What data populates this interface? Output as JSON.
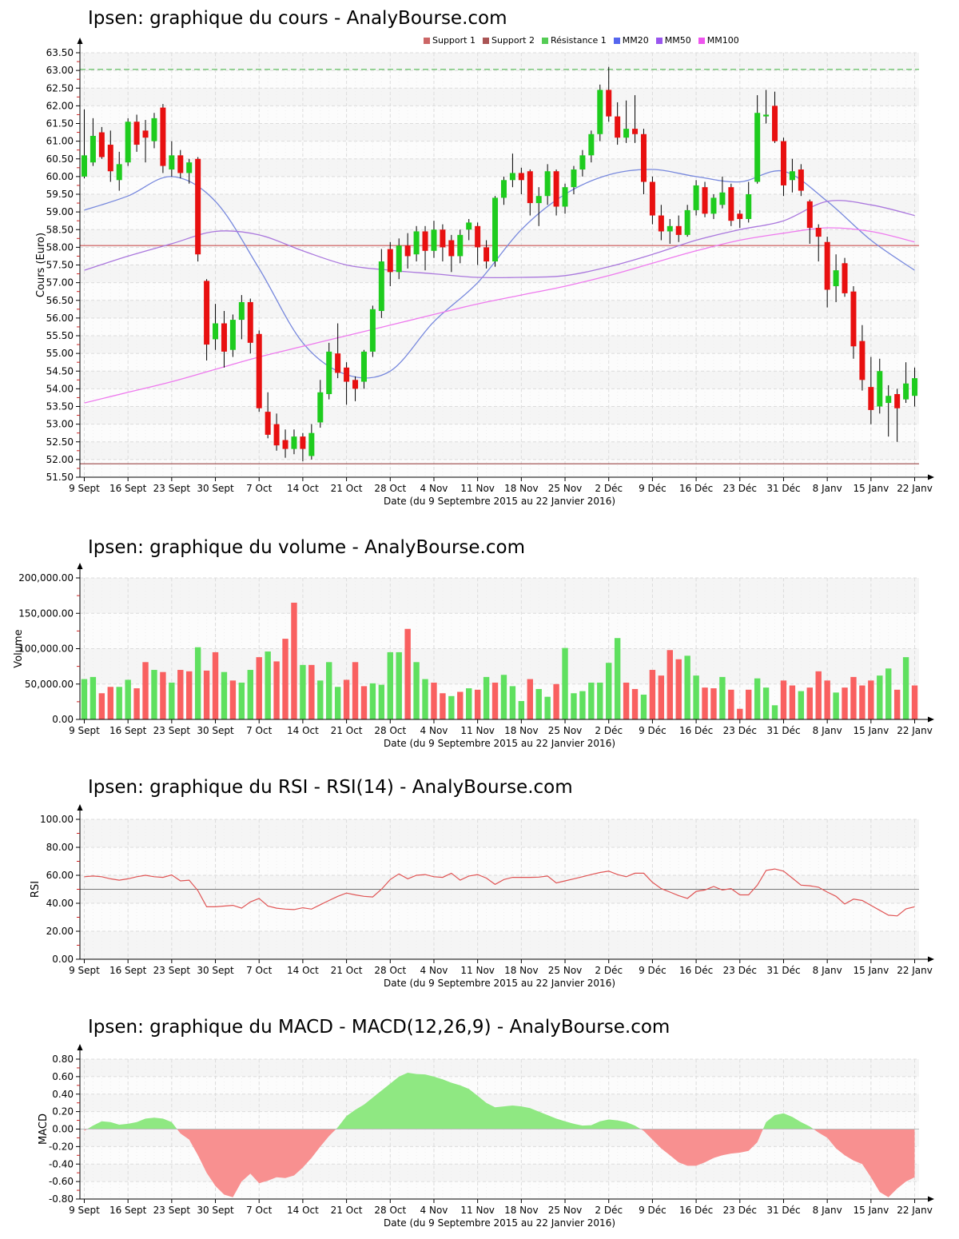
{
  "source_site": "AnalyBourse.com",
  "instrument": "Ipsen",
  "chart_data": [
    {
      "type": "candlestick",
      "title": "Ipsen: graphique du cours - AnalyBourse.com",
      "ylabel": "Cours (Euro)",
      "xlabel": "Date (du 9 Septembre 2015 au 22 Janvier 2016)",
      "ylim": [
        51.5,
        63.5
      ],
      "ystep": 0.5,
      "n_points": 96,
      "xtick_interval": 5,
      "xticklabels": [
        "9 Sept",
        "16 Sept",
        "23 Sept",
        "30 Sept",
        "7 Oct",
        "14 Oct",
        "21 Oct",
        "28 Oct",
        "4 Nov",
        "11 Nov",
        "18 Nov",
        "25 Nov",
        "2 Déc",
        "9 Déc",
        "16 Déc",
        "23 Déc",
        "31 Déc",
        "8 Janv",
        "15 Janv",
        "22 Janv"
      ],
      "up_color": "#1ecc1e",
      "down_color": "#e81010",
      "candles_ohlc": [
        [
          60.0,
          61.9,
          59.95,
          60.6
        ],
        [
          60.4,
          61.65,
          60.3,
          61.15
        ],
        [
          61.25,
          61.4,
          60.5,
          60.55
        ],
        [
          60.9,
          61.3,
          59.85,
          60.15
        ],
        [
          59.9,
          60.7,
          59.6,
          60.35
        ],
        [
          60.4,
          61.65,
          60.3,
          61.55
        ],
        [
          61.55,
          61.75,
          60.7,
          60.9
        ],
        [
          61.3,
          61.6,
          60.4,
          61.1
        ],
        [
          61.0,
          61.8,
          60.8,
          61.65
        ],
        [
          61.95,
          62.05,
          60.1,
          60.3
        ],
        [
          60.2,
          61.0,
          60.0,
          60.6
        ],
        [
          60.6,
          60.75,
          59.95,
          60.1
        ],
        [
          60.1,
          60.5,
          59.8,
          60.4
        ],
        [
          60.5,
          60.55,
          57.6,
          57.8
        ],
        [
          57.05,
          57.1,
          54.8,
          55.25
        ],
        [
          55.4,
          56.4,
          55.1,
          55.85
        ],
        [
          55.85,
          56.2,
          54.6,
          55.05
        ],
        [
          55.1,
          56.1,
          54.9,
          55.95
        ],
        [
          55.95,
          56.65,
          55.4,
          56.45
        ],
        [
          56.45,
          56.55,
          55.0,
          55.3
        ],
        [
          55.55,
          55.65,
          53.35,
          53.45
        ],
        [
          53.35,
          53.9,
          52.6,
          52.7
        ],
        [
          53.0,
          53.3,
          52.25,
          52.4
        ],
        [
          52.55,
          52.85,
          52.05,
          52.3
        ],
        [
          52.3,
          52.85,
          52.15,
          52.65
        ],
        [
          52.65,
          52.75,
          51.95,
          52.3
        ],
        [
          52.1,
          53.0,
          52.0,
          52.75
        ],
        [
          53.05,
          54.25,
          52.9,
          53.9
        ],
        [
          53.85,
          55.3,
          53.7,
          55.05
        ],
        [
          55.0,
          55.85,
          54.3,
          54.45
        ],
        [
          54.6,
          54.75,
          53.55,
          54.2
        ],
        [
          54.25,
          54.35,
          53.65,
          54.0
        ],
        [
          54.2,
          55.1,
          54.0,
          55.05
        ],
        [
          55.05,
          56.35,
          54.9,
          56.25
        ],
        [
          56.2,
          57.95,
          56.0,
          57.6
        ],
        [
          57.95,
          58.15,
          56.9,
          57.3
        ],
        [
          57.3,
          58.25,
          57.1,
          58.05
        ],
        [
          58.05,
          58.4,
          57.4,
          57.75
        ],
        [
          57.8,
          58.6,
          57.6,
          58.45
        ],
        [
          58.45,
          58.6,
          57.35,
          57.9
        ],
        [
          57.9,
          58.75,
          57.7,
          58.5
        ],
        [
          58.5,
          58.65,
          57.6,
          58.0
        ],
        [
          58.2,
          58.35,
          57.3,
          57.75
        ],
        [
          57.75,
          58.5,
          57.55,
          58.35
        ],
        [
          58.5,
          58.8,
          58.2,
          58.7
        ],
        [
          58.6,
          58.7,
          57.5,
          58.0
        ],
        [
          58.0,
          58.2,
          57.4,
          57.6
        ],
        [
          57.6,
          59.45,
          57.45,
          59.4
        ],
        [
          59.4,
          60.0,
          59.2,
          59.9
        ],
        [
          59.9,
          60.65,
          59.7,
          60.1
        ],
        [
          60.1,
          60.25,
          59.5,
          59.9
        ],
        [
          60.15,
          60.2,
          58.9,
          59.25
        ],
        [
          59.25,
          59.7,
          58.6,
          59.45
        ],
        [
          59.45,
          60.35,
          59.2,
          60.15
        ],
        [
          60.15,
          60.2,
          58.9,
          59.15
        ],
        [
          59.15,
          59.8,
          58.95,
          59.7
        ],
        [
          59.7,
          60.3,
          59.5,
          60.2
        ],
        [
          60.2,
          60.75,
          60.0,
          60.6
        ],
        [
          60.6,
          61.3,
          60.4,
          61.2
        ],
        [
          61.2,
          62.6,
          61.0,
          62.45
        ],
        [
          62.45,
          63.1,
          61.55,
          61.7
        ],
        [
          61.7,
          62.1,
          60.9,
          61.1
        ],
        [
          61.1,
          62.15,
          60.95,
          61.35
        ],
        [
          61.35,
          62.3,
          60.95,
          61.2
        ],
        [
          61.2,
          61.35,
          59.5,
          59.85
        ],
        [
          59.85,
          60.0,
          58.65,
          58.9
        ],
        [
          58.9,
          59.2,
          58.2,
          58.45
        ],
        [
          58.45,
          58.8,
          58.1,
          58.6
        ],
        [
          58.6,
          58.9,
          58.15,
          58.35
        ],
        [
          58.35,
          59.2,
          58.3,
          59.05
        ],
        [
          59.05,
          59.9,
          58.9,
          59.75
        ],
        [
          59.7,
          59.85,
          58.85,
          58.95
        ],
        [
          58.95,
          59.5,
          58.8,
          59.4
        ],
        [
          59.2,
          60.0,
          59.1,
          59.55
        ],
        [
          59.7,
          59.8,
          58.6,
          58.75
        ],
        [
          58.95,
          59.05,
          58.55,
          58.8
        ],
        [
          58.8,
          59.85,
          58.7,
          59.5
        ],
        [
          59.85,
          62.3,
          59.8,
          61.8
        ],
        [
          61.7,
          62.45,
          61.5,
          61.75
        ],
        [
          62.0,
          62.4,
          60.95,
          61.0
        ],
        [
          61.0,
          61.1,
          59.45,
          59.75
        ],
        [
          59.9,
          60.5,
          59.55,
          60.15
        ],
        [
          60.2,
          60.35,
          59.45,
          59.6
        ],
        [
          59.3,
          59.35,
          58.1,
          58.55
        ],
        [
          58.55,
          58.65,
          57.6,
          58.3
        ],
        [
          58.15,
          58.3,
          56.3,
          56.8
        ],
        [
          56.9,
          57.8,
          56.45,
          57.35
        ],
        [
          57.55,
          57.7,
          56.6,
          56.7
        ],
        [
          56.75,
          56.9,
          54.85,
          55.2
        ],
        [
          55.35,
          55.8,
          53.95,
          54.25
        ],
        [
          54.05,
          54.9,
          53.0,
          53.4
        ],
        [
          53.5,
          54.85,
          53.3,
          54.5
        ],
        [
          53.6,
          54.1,
          52.65,
          53.8
        ],
        [
          53.85,
          54.0,
          52.5,
          53.45
        ],
        [
          53.7,
          54.75,
          53.6,
          54.15
        ],
        [
          53.8,
          54.6,
          53.5,
          54.3
        ]
      ],
      "moving_averages": [
        {
          "name": "MM20",
          "color": "#7788dd",
          "waypoint_interval": 5,
          "waypoints": [
            59.05,
            59.45,
            60.0,
            59.3,
            57.4,
            55.3,
            54.4,
            54.5,
            55.9,
            57.0,
            58.5,
            59.5,
            60.05,
            60.2,
            60.0,
            59.85,
            60.15,
            59.3,
            58.2,
            57.35
          ]
        },
        {
          "name": "MM50",
          "color": "#aa77dd",
          "waypoint_interval": 5,
          "waypoints": [
            57.35,
            57.75,
            58.1,
            58.45,
            58.35,
            57.9,
            57.5,
            57.35,
            57.25,
            57.15,
            57.15,
            57.2,
            57.45,
            57.8,
            58.2,
            58.5,
            58.75,
            59.3,
            59.2,
            58.9
          ]
        },
        {
          "name": "MM100",
          "color": "#ee7aee",
          "waypoint_interval": 5,
          "waypoints": [
            53.6,
            53.9,
            54.2,
            54.55,
            54.9,
            55.2,
            55.5,
            55.8,
            56.1,
            56.4,
            56.65,
            56.9,
            57.2,
            57.55,
            57.9,
            58.2,
            58.4,
            58.55,
            58.45,
            58.15
          ]
        }
      ],
      "hlines": [
        {
          "name": "Support 1",
          "y": 58.05,
          "color": "#cc5555",
          "dash": null
        },
        {
          "name": "Support 2",
          "y": 51.88,
          "color": "#994444",
          "dash": null
        },
        {
          "name": "Résistance 1",
          "y": 63.03,
          "color": "#55bb55",
          "dash": [
            7,
            4
          ]
        }
      ],
      "legend": [
        {
          "label": "Support 1",
          "color": "#cc6666"
        },
        {
          "label": "Support 2",
          "color": "#aa5555"
        },
        {
          "label": "Résistance 1",
          "color": "#55cc55"
        },
        {
          "label": "MM20",
          "color": "#5566ee"
        },
        {
          "label": "MM50",
          "color": "#9955ee"
        },
        {
          "label": "MM100",
          "color": "#ee55ee"
        }
      ]
    },
    {
      "type": "bar",
      "title": "Ipsen: graphique du volume - AnalyBourse.com",
      "ylabel": "Volume",
      "xlabel": "Date (du 9 Septembre 2015 au 22 Janvier 2016)",
      "ylim": [
        0,
        200000
      ],
      "ystep": 50000,
      "xtick_interval": 5,
      "xticklabels": [
        "9 Sept",
        "16 Sept",
        "23 Sept",
        "30 Sept",
        "7 Oct",
        "14 Oct",
        "21 Oct",
        "28 Oct",
        "4 Nov",
        "11 Nov",
        "18 Nov",
        "25 Nov",
        "2 Déc",
        "9 Déc",
        "16 Déc",
        "23 Déc",
        "31 Déc",
        "8 Janv",
        "15 Janv",
        "22 Janv"
      ],
      "up_color": "#5fe05f",
      "down_color": "#f96060",
      "values": [
        57000,
        60000,
        37000,
        46000,
        46000,
        56000,
        44000,
        81000,
        70000,
        67000,
        52000,
        70000,
        68000,
        102000,
        69000,
        95000,
        67000,
        55000,
        52000,
        70000,
        88000,
        96000,
        82000,
        114000,
        165000,
        77000,
        77000,
        55000,
        81000,
        46000,
        56000,
        81000,
        47000,
        51000,
        49000,
        95000,
        95000,
        128000,
        81000,
        57000,
        52000,
        37000,
        33000,
        39000,
        44000,
        42000,
        60000,
        52000,
        63000,
        47000,
        26000,
        57000,
        43000,
        32000,
        50000,
        101000,
        37000,
        40000,
        52000,
        52000,
        80000,
        115000,
        52000,
        43000,
        35000,
        70000,
        62000,
        98000,
        85000,
        90000,
        62000,
        45000,
        44000,
        60000,
        42000,
        15000,
        42000,
        58000,
        45000,
        20000,
        55000,
        48000,
        40000,
        45000,
        68000,
        55000,
        38000,
        45000,
        60000,
        48000,
        55000,
        62000,
        72000,
        42000,
        88000,
        48000
      ],
      "bar_directions": "ggrrggrrgrgrrgrrgrggrgrrrgrgggrrrggggrggrrgrgrgrgggrggrgggggggrrgrrrrggrrgrrrgggrrgrrrgrrrrggrgrg"
    },
    {
      "type": "line",
      "title": "Ipsen: graphique du RSI - RSI(14) - AnalyBourse.com",
      "ylabel": "RSI",
      "xlabel": "Date (du 9 Septembre 2015 au 22 Janvier 2016)",
      "ylim": [
        0,
        100
      ],
      "ystep": 20,
      "midline": 50,
      "line_color": "#e05555",
      "xtick_interval": 5,
      "xticklabels": [
        "9 Sept",
        "16 Sept",
        "23 Sept",
        "30 Sept",
        "7 Oct",
        "14 Oct",
        "21 Oct",
        "28 Oct",
        "4 Nov",
        "11 Nov",
        "18 Nov",
        "25 Nov",
        "2 Déc",
        "9 Déc",
        "16 Déc",
        "23 Déc",
        "31 Déc",
        "8 Janv",
        "15 Janv",
        "22 Janv"
      ],
      "values": [
        59,
        59.5,
        59,
        57.5,
        56.5,
        57.5,
        59,
        60,
        59,
        58.5,
        60.3,
        56,
        56.5,
        49,
        37.5,
        37.5,
        38,
        38.5,
        36.5,
        41,
        43.5,
        38,
        36.5,
        35.8,
        35.5,
        36.8,
        35.8,
        39,
        42,
        45,
        47.3,
        46,
        45,
        44.5,
        50,
        57,
        61,
        57.5,
        60,
        60.5,
        59,
        58.5,
        61.5,
        56.5,
        59.5,
        60.5,
        58,
        53.5,
        57,
        58.5,
        58.5,
        58.5,
        58.7,
        59.5,
        54.5,
        56,
        57.5,
        59,
        60.5,
        62,
        63,
        60.5,
        59,
        61.5,
        61.5,
        55,
        50.5,
        48,
        45.5,
        43.5,
        48.5,
        49.5,
        52,
        49.5,
        50.5,
        46,
        46,
        53,
        63.5,
        64.5,
        63,
        58,
        53,
        52.5,
        51.5,
        48,
        45,
        39.5,
        43,
        42,
        38.5,
        35,
        31.5,
        31,
        36,
        37.5
      ]
    },
    {
      "type": "area",
      "title": "Ipsen: graphique du MACD - MACD(12,26,9) - AnalyBourse.com",
      "ylabel": "MACD",
      "xlabel": "Date (du 9 Septembre 2015 au 22 Janvier 2016)",
      "ylim": [
        -0.8,
        0.8
      ],
      "ystep": 0.2,
      "pos_color": "#8fe882",
      "neg_color": "#f89090",
      "xtick_interval": 5,
      "xticklabels": [
        "9 Sept",
        "16 Sept",
        "23 Sept",
        "30 Sept",
        "7 Oct",
        "14 Oct",
        "21 Oct",
        "28 Oct",
        "4 Nov",
        "11 Nov",
        "18 Nov",
        "25 Nov",
        "2 Déc",
        "9 Déc",
        "16 Déc",
        "23 Déc",
        "31 Déc",
        "8 Janv",
        "15 Janv",
        "22 Janv"
      ],
      "values": [
        -0.02,
        0.04,
        0.09,
        0.08,
        0.05,
        0.06,
        0.08,
        0.12,
        0.13,
        0.12,
        0.08,
        -0.05,
        -0.12,
        -0.3,
        -0.5,
        -0.65,
        -0.75,
        -0.78,
        -0.6,
        -0.51,
        -0.62,
        -0.59,
        -0.55,
        -0.56,
        -0.53,
        -0.44,
        -0.33,
        -0.2,
        -0.08,
        0.02,
        0.15,
        0.22,
        0.28,
        0.36,
        0.44,
        0.52,
        0.6,
        0.645,
        0.63,
        0.625,
        0.6,
        0.57,
        0.53,
        0.5,
        0.46,
        0.38,
        0.3,
        0.25,
        0.26,
        0.27,
        0.26,
        0.24,
        0.2,
        0.16,
        0.12,
        0.09,
        0.06,
        0.04,
        0.045,
        0.09,
        0.11,
        0.1,
        0.08,
        0.04,
        -0.02,
        -0.12,
        -0.22,
        -0.3,
        -0.38,
        -0.42,
        -0.42,
        -0.38,
        -0.33,
        -0.3,
        -0.28,
        -0.27,
        -0.25,
        -0.15,
        0.08,
        0.16,
        0.18,
        0.14,
        0.08,
        0.03,
        -0.04,
        -0.1,
        -0.22,
        -0.3,
        -0.36,
        -0.4,
        -0.55,
        -0.72,
        -0.78,
        -0.68,
        -0.6,
        -0.55
      ]
    }
  ]
}
